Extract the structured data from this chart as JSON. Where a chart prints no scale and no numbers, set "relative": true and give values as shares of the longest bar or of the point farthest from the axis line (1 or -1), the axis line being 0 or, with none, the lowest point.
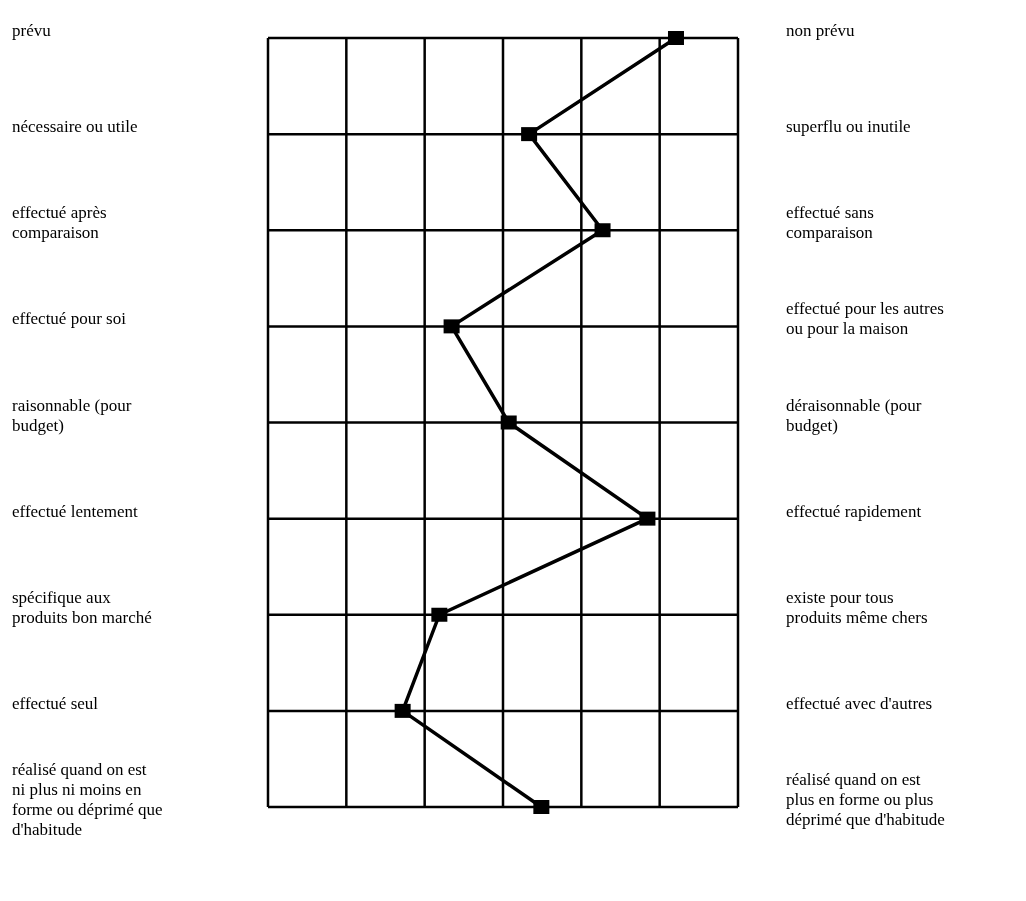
{
  "chart_data": {
    "type": "line",
    "orientation": "horizontal",
    "relative": true,
    "categories": [
      "prévu",
      "nécessaire ou utile",
      "effectué après comparaison",
      "effectué pour soi",
      "raisonnable (pour budget)",
      "effectué lentement",
      "spécifique aux produits bon marché",
      "effectué seul",
      "réalisé quand on est ni plus ni moins en forme ou déprimé que d'habitude"
    ],
    "y2_categories": [
      "non prévu",
      "superflu ou inutile",
      "effectué sans comparaison",
      "effectué pour les autres ou pour la maison",
      "déraisonnable (pour budget)",
      "effectué rapidement",
      "existe pour tous produits même chers",
      "effectué avec d'autres",
      "réalisé quand on est plus en forme ou plus déprimé que d'habitude"
    ],
    "series": [
      {
        "color": "#000000",
        "values": [
          1,
          0.64,
          0.82,
          0.45,
          0.59,
          0.93,
          0.42,
          0.33,
          0.67
        ]
      }
    ],
    "grid": true,
    "marker": "square",
    "line_style": "solid"
  }
}
